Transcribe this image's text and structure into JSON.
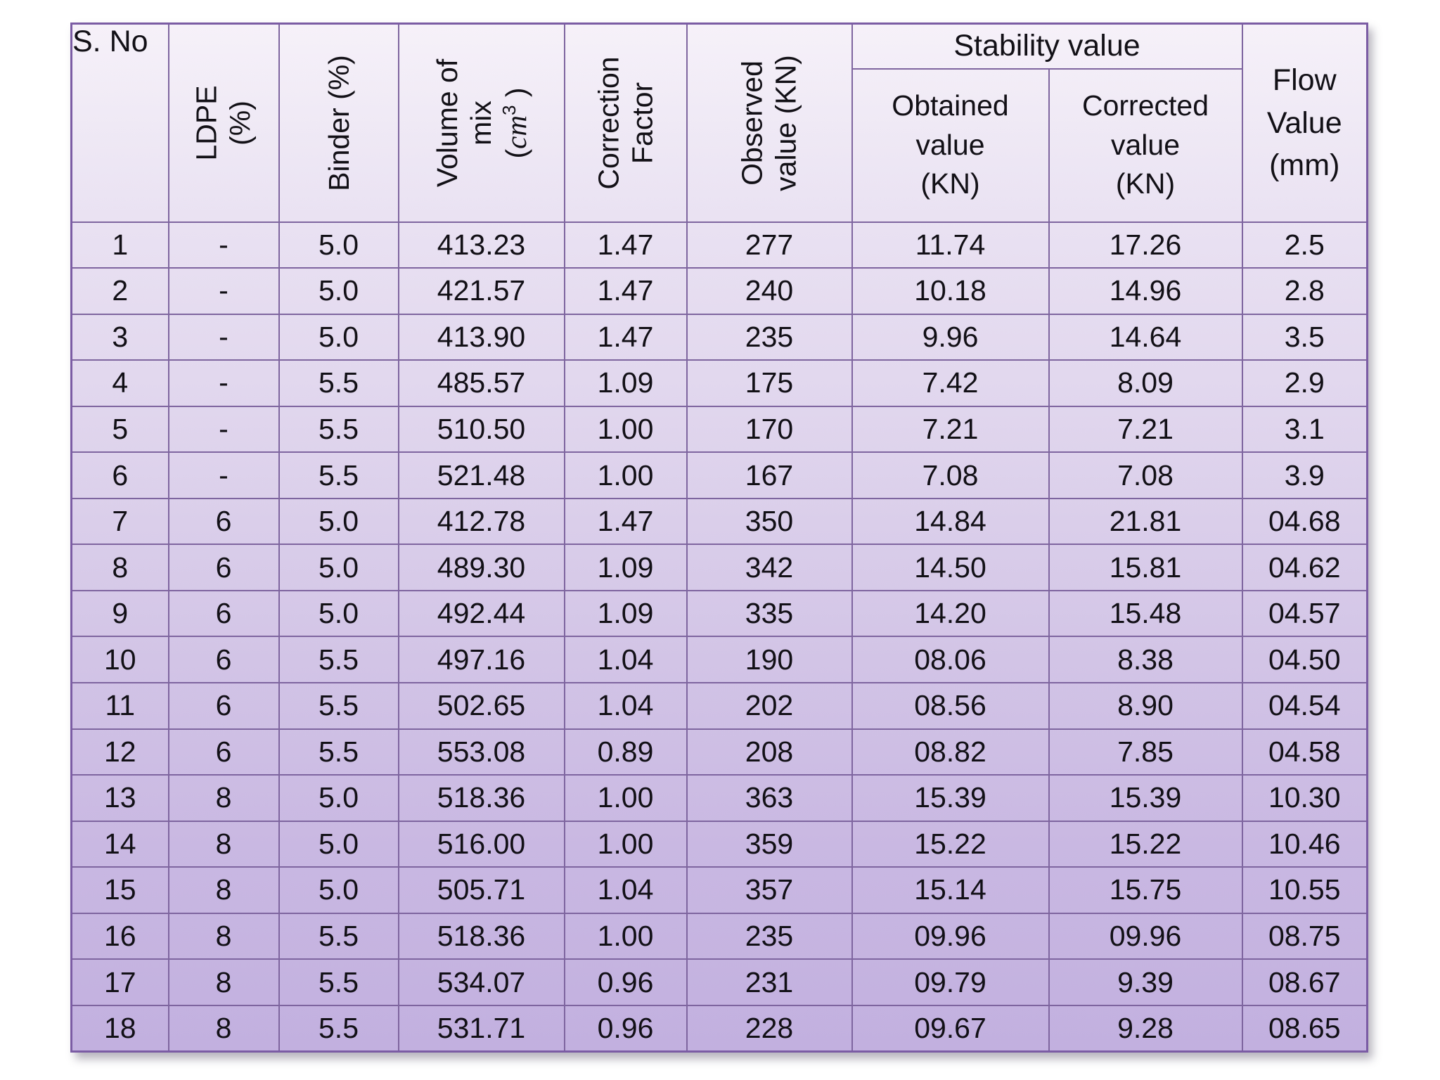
{
  "table": {
    "header": {
      "sno": "S. No",
      "ldpe_lines": [
        "LDPE",
        "(%)"
      ],
      "binder": "Binder (%)",
      "volume_lines": [
        "Volume of",
        "mix"
      ],
      "volume_unit": {
        "open": "(",
        "name": "cm",
        "exp": "3",
        "close": " )"
      },
      "correction_lines": [
        "Correction",
        "Factor"
      ],
      "observed_lines": [
        "Observed",
        "value (KN)"
      ],
      "stability_group": "Stability value",
      "obtained_lines": [
        "Obtained",
        "value",
        "(KN)"
      ],
      "corrected_lines": [
        "Corrected",
        "value",
        "(KN)"
      ],
      "flow_lines": [
        "Flow",
        "Value",
        "(mm)"
      ]
    },
    "column_keys": [
      "sno",
      "ldpe",
      "binder",
      "volume",
      "correction",
      "observed",
      "obtained",
      "corrected",
      "flow"
    ]
  },
  "chart_data": {
    "type": "table",
    "title": "",
    "columns": [
      "S. No",
      "LDPE (%)",
      "Binder (%)",
      "Volume of mix (cm3)",
      "Correction Factor",
      "Observed value (KN)",
      "Stability value - Obtained value (KN)",
      "Stability value - Corrected value (KN)",
      "Flow Value (mm)"
    ],
    "rows": [
      [
        "1",
        "-",
        "5.0",
        "413.23",
        "1.47",
        "277",
        "11.74",
        "17.26",
        "2.5"
      ],
      [
        "2",
        "-",
        "5.0",
        "421.57",
        "1.47",
        "240",
        "10.18",
        "14.96",
        "2.8"
      ],
      [
        "3",
        "-",
        "5.0",
        "413.90",
        "1.47",
        "235",
        "9.96",
        "14.64",
        "3.5"
      ],
      [
        "4",
        "-",
        "5.5",
        "485.57",
        "1.09",
        "175",
        "7.42",
        "8.09",
        "2.9"
      ],
      [
        "5",
        "-",
        "5.5",
        "510.50",
        "1.00",
        "170",
        "7.21",
        "7.21",
        "3.1"
      ],
      [
        "6",
        "-",
        "5.5",
        "521.48",
        "1.00",
        "167",
        "7.08",
        "7.08",
        "3.9"
      ],
      [
        "7",
        "6",
        "5.0",
        "412.78",
        "1.47",
        "350",
        "14.84",
        "21.81",
        "04.68"
      ],
      [
        "8",
        "6",
        "5.0",
        "489.30",
        "1.09",
        "342",
        "14.50",
        "15.81",
        "04.62"
      ],
      [
        "9",
        "6",
        "5.0",
        "492.44",
        "1.09",
        "335",
        "14.20",
        "15.48",
        "04.57"
      ],
      [
        "10",
        "6",
        "5.5",
        "497.16",
        "1.04",
        "190",
        "08.06",
        "8.38",
        "04.50"
      ],
      [
        "11",
        "6",
        "5.5",
        "502.65",
        "1.04",
        "202",
        "08.56",
        "8.90",
        "04.54"
      ],
      [
        "12",
        "6",
        "5.5",
        "553.08",
        "0.89",
        "208",
        "08.82",
        "7.85",
        "04.58"
      ],
      [
        "13",
        "8",
        "5.0",
        "518.36",
        "1.00",
        "363",
        "15.39",
        "15.39",
        "10.30"
      ],
      [
        "14",
        "8",
        "5.0",
        "516.00",
        "1.00",
        "359",
        "15.22",
        "15.22",
        "10.46"
      ],
      [
        "15",
        "8",
        "5.0",
        "505.71",
        "1.04",
        "357",
        "15.14",
        "15.75",
        "10.55"
      ],
      [
        "16",
        "8",
        "5.5",
        "518.36",
        "1.00",
        "235",
        "09.96",
        "09.96",
        "08.75"
      ],
      [
        "17",
        "8",
        "5.5",
        "534.07",
        "0.96",
        "231",
        "09.79",
        "9.39",
        "08.67"
      ],
      [
        "18",
        "8",
        "5.5",
        "531.71",
        "0.96",
        "228",
        "09.67",
        "9.28",
        "08.65"
      ]
    ]
  },
  "colors": {
    "page_background": "#ffffff",
    "table_gradient_top": "#f6f1f9",
    "table_gradient_bottom": "#c2b0df",
    "border": "#7e659f",
    "outer_border": "#7b5ca4",
    "text": "#121016"
  }
}
